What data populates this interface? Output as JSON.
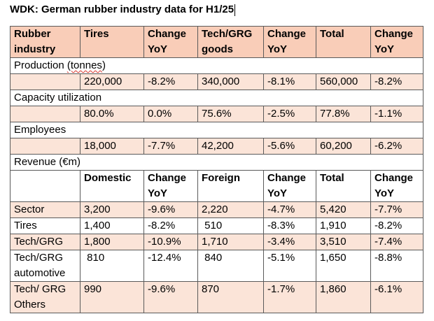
{
  "title": "WDK: German rubber industry data for H1/25",
  "header": [
    "Rubber\nindustry",
    "Tires",
    "Change\nYoY",
    "Tech/GRG\ngoods",
    "Change\nYoY",
    "Total",
    "Change\nYoY"
  ],
  "sections": [
    {
      "label_pre": "Production ",
      "label_mark": "(tonnes",
      "label_post": ")",
      "values": [
        "220,000",
        "-8.2%",
        "340,000",
        "-8.1%",
        "560,000",
        "-8.2%"
      ]
    },
    {
      "label_pre": "Capacity utilization",
      "label_mark": "",
      "label_post": "",
      "values": [
        "80.0%",
        "0.0%",
        "75.6%",
        "-2.5%",
        "77.8%",
        "-1.1%"
      ]
    },
    {
      "label_pre": "Employees",
      "label_mark": "",
      "label_post": "",
      "values": [
        "18,000",
        "-7.7%",
        "42,200",
        "-5.6%",
        "60,200",
        "-6.2%"
      ]
    }
  ],
  "revenue": {
    "label": "Revenue (€m)",
    "header": [
      "",
      "Domestic",
      "Change\nYoY",
      "Foreign",
      "Change\nYoY",
      "Total",
      "Change\nYoY"
    ],
    "rows": [
      [
        "Sector",
        "3,200",
        "-9.6%",
        "2,220",
        "-4.7%",
        "5,420",
        "-7.7%"
      ],
      [
        "Tires",
        "1,400",
        "-8.2%",
        " 510",
        "-8.3%",
        "1,910",
        "-8.2%"
      ],
      [
        "Tech/GRG",
        "1,800",
        "-10.9%",
        "1,710",
        "-3.4%",
        "3,510",
        "-7.4%"
      ],
      [
        "Tech/GRG\nautomotive",
        " 810",
        "-12.4%",
        " 840",
        "-5.1%",
        "1,650",
        "-8.8%"
      ],
      [
        "Tech/ GRG\nOthers",
        "990",
        "-9.6%",
        "870",
        "-1.7%",
        "1,860",
        "-6.1%"
      ]
    ]
  }
}
